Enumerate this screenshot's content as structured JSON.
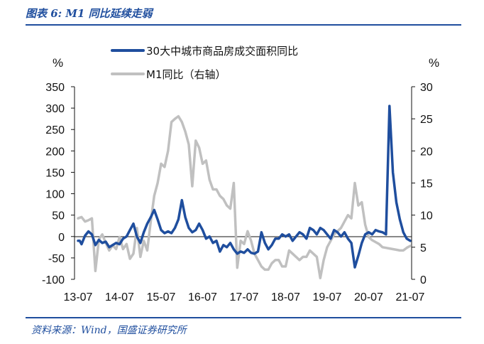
{
  "header": {
    "figure_title": "图表 6:  M1 同比延续走弱"
  },
  "footer": {
    "source": "资料来源：Wind，国盛证券研究所"
  },
  "chart_data": {
    "type": "line",
    "x_labels": [
      "13-07",
      "14-07",
      "15-07",
      "16-07",
      "17-07",
      "18-07",
      "19-07",
      "20-07",
      "21-07"
    ],
    "left_axis": {
      "unit": "%",
      "ylim": [
        -100,
        350
      ],
      "ticks": [
        350,
        300,
        250,
        200,
        150,
        100,
        50,
        0,
        -50,
        -100
      ]
    },
    "right_axis": {
      "unit": "%",
      "ylim": [
        0,
        30
      ],
      "ticks": [
        30,
        25,
        20,
        15,
        10,
        5,
        0
      ]
    },
    "grid": false,
    "legend_position": "top-center",
    "series": [
      {
        "name": "30大中城市商品房成交面积同比",
        "axis": "left",
        "color": "#1f4e9e",
        "t": [
          0,
          0.5,
          1,
          2,
          3,
          4,
          5,
          6,
          7,
          8,
          9,
          10,
          11,
          12,
          13,
          14,
          15,
          16,
          17,
          18,
          19,
          20,
          21,
          22,
          23,
          24,
          25,
          26,
          27,
          28,
          29,
          30,
          31,
          32,
          33,
          34,
          35,
          36,
          37,
          38,
          39,
          40,
          41,
          42,
          43,
          44,
          45,
          46,
          47,
          48,
          49,
          50,
          51,
          52,
          53,
          54,
          55,
          56,
          57,
          58,
          59,
          60,
          61,
          62,
          63,
          64,
          65,
          66,
          67,
          68,
          69,
          70,
          71,
          72,
          73,
          74,
          75,
          76,
          77,
          78,
          79,
          80,
          81,
          82,
          83,
          84,
          85,
          86,
          87,
          88,
          89,
          90,
          91,
          92,
          93,
          94,
          95,
          96
        ],
        "values": [
          -10,
          -10,
          -18,
          2,
          12,
          5,
          -20,
          -8,
          -15,
          -12,
          -25,
          -20,
          -15,
          -18,
          -5,
          0,
          15,
          30,
          0,
          -15,
          10,
          30,
          45,
          62,
          40,
          15,
          8,
          12,
          8,
          20,
          40,
          85,
          45,
          20,
          10,
          15,
          30,
          15,
          -5,
          0,
          -15,
          -10,
          -35,
          -20,
          -25,
          -15,
          -30,
          -40,
          -35,
          -38,
          -30,
          -38,
          -40,
          -35,
          10,
          -15,
          -30,
          -20,
          -5,
          -5,
          5,
          0,
          5,
          -10,
          0,
          10,
          5,
          -5,
          20,
          15,
          5,
          20,
          15,
          5,
          -5,
          15,
          10,
          0,
          10,
          -5,
          -15,
          -72,
          -45,
          -15,
          5,
          10,
          5,
          15,
          12,
          10,
          5,
          305,
          150,
          80,
          40,
          10,
          -5,
          -10
        ]
      },
      {
        "name": "M1同比（右轴）",
        "axis": "right",
        "color": "#c0c0c0",
        "t": [
          0,
          0.5,
          1,
          2,
          3,
          4,
          5,
          6,
          7,
          8,
          9,
          10,
          11,
          12,
          13,
          14,
          15,
          16,
          17,
          18,
          19,
          20,
          21,
          22,
          23,
          24,
          25,
          26,
          27,
          28,
          29,
          30,
          31,
          32,
          33,
          34,
          35,
          36,
          37,
          38,
          39,
          40,
          41,
          42,
          43,
          44,
          45,
          46,
          47,
          48,
          49,
          50,
          51,
          52,
          53,
          54,
          55,
          56,
          57,
          58,
          59,
          60,
          61,
          62,
          63,
          64,
          65,
          66,
          67,
          68,
          69,
          70,
          71,
          72,
          73,
          74,
          75,
          76,
          77,
          78,
          79,
          80,
          81,
          82,
          83,
          84,
          85,
          86,
          87,
          88,
          89,
          90,
          91,
          92,
          93,
          94,
          95,
          96
        ],
        "values": [
          9.5,
          9.6,
          9.7,
          9.0,
          9.2,
          9.5,
          1.3,
          6.2,
          7.0,
          5.7,
          4.5,
          5.3,
          4.7,
          6.6,
          4.7,
          5.5,
          3.2,
          4.0,
          8.0,
          3.5,
          6.0,
          4.5,
          9.0,
          13.0,
          15.0,
          18.0,
          17.5,
          20.0,
          24.5,
          25.0,
          25.4,
          24.5,
          23.0,
          21.0,
          14.5,
          21.6,
          20.5,
          18.0,
          18.5,
          15.5,
          14.0,
          14.0,
          13.0,
          12.5,
          11.5,
          11.0,
          15.0,
          1.8,
          6.0,
          5.5,
          7.5,
          6.0,
          4.0,
          3.0,
          2.0,
          1.5,
          1.5,
          2.5,
          3.0,
          3.0,
          2.0,
          2.0,
          4.5,
          4.0,
          3.5,
          3.0,
          3.5,
          3.5,
          4.5,
          4.0,
          3.5,
          0.2,
          3.0,
          5.0,
          6.0,
          7.0,
          7.5,
          8.0,
          9.0,
          10.0,
          9.5,
          15.0,
          11.5,
          12.0,
          8.5,
          6.6,
          6.1,
          5.8,
          5.5,
          5.0,
          4.9,
          4.8,
          4.7,
          4.6,
          4.5,
          4.5,
          4.9,
          5.2
        ]
      }
    ]
  }
}
